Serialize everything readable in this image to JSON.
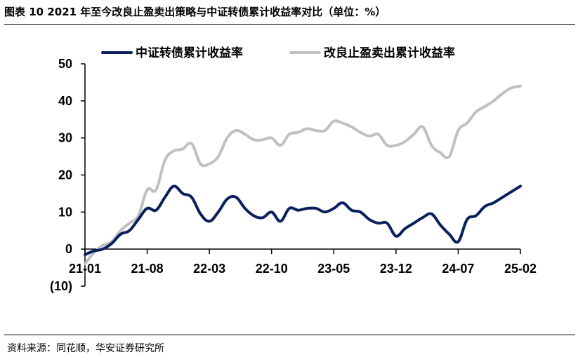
{
  "figure": {
    "title": "图表 10  2021 年至今改良止盈卖出策略与中证转债累计收益率对比（单位：%）",
    "source": "资料来源：同花顺，华安证券研究所"
  },
  "chart_data": {
    "type": "line",
    "title": "",
    "xlabel": "",
    "ylabel": "",
    "ylim": [
      -10,
      50
    ],
    "yticks": [
      50,
      40,
      30,
      20,
      10,
      0,
      -10
    ],
    "ytick_labels": [
      "50",
      "40",
      "30",
      "20",
      "10",
      "0",
      "(10)"
    ],
    "negative_tick_color": "#c00000",
    "xlim": [
      0,
      49
    ],
    "xticks": [
      0,
      7,
      14,
      21,
      28,
      35,
      42,
      49
    ],
    "xtick_labels": [
      "21-01",
      "21-08",
      "22-03",
      "22-10",
      "23-05",
      "23-12",
      "24-07",
      "25-02"
    ],
    "grid": false,
    "legend_position": "top",
    "series": [
      {
        "name": "中证转债累计收益率",
        "color": "#0a1f5c",
        "x": [
          0,
          1,
          2,
          3,
          4,
          5,
          6,
          7,
          8,
          9,
          10,
          11,
          12,
          13,
          14,
          15,
          16,
          17,
          18,
          19,
          20,
          21,
          22,
          23,
          24,
          25,
          26,
          27,
          28,
          29,
          30,
          31,
          32,
          33,
          34,
          35,
          36,
          37,
          38,
          39,
          40,
          41,
          42,
          43,
          44,
          45,
          46,
          47,
          48,
          49
        ],
        "values": [
          -1.5,
          -0.5,
          0,
          1.5,
          4,
          5,
          8,
          11,
          10.5,
          14,
          17,
          15,
          14,
          9.5,
          7.5,
          10,
          13.5,
          14,
          11,
          9,
          8.5,
          10,
          7.5,
          11,
          10.5,
          11,
          11,
          10,
          11,
          12.5,
          10.5,
          10,
          8,
          7,
          7,
          3.5,
          5.5,
          7,
          8.5,
          9.5,
          6.5,
          4,
          2,
          8,
          9,
          11.5,
          12.5,
          14,
          15.5,
          17
        ]
      },
      {
        "name": "改良止盈卖出累计收益率",
        "color": "#c0c0c0",
        "x": [
          0,
          1,
          2,
          3,
          4,
          5,
          6,
          7,
          8,
          9,
          10,
          11,
          12,
          13,
          14,
          15,
          16,
          17,
          18,
          19,
          20,
          21,
          22,
          23,
          24,
          25,
          26,
          27,
          28,
          29,
          30,
          31,
          32,
          33,
          34,
          35,
          36,
          37,
          38,
          39,
          40,
          41,
          42,
          43,
          44,
          45,
          46,
          47,
          48,
          49
        ],
        "values": [
          -4,
          -1,
          1,
          2,
          5,
          7,
          9,
          16,
          16,
          24,
          26.5,
          27,
          28.5,
          23,
          23,
          25,
          30,
          32,
          31,
          29.5,
          29.5,
          30,
          28,
          31,
          31.5,
          32.5,
          32,
          32,
          34.5,
          34,
          33,
          31.5,
          30.5,
          31,
          28,
          28,
          29,
          31,
          33,
          28,
          26,
          25,
          32,
          34,
          37,
          38.5,
          40,
          42,
          43.5,
          44
        ]
      }
    ]
  }
}
